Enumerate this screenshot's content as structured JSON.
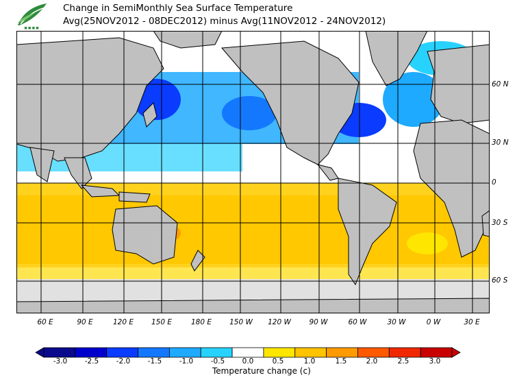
{
  "title": {
    "line1": "Change in SemiMonthly Sea Surface Temperature",
    "line2": "Avg(25NOV2012 - 08DEC2012) minus Avg(11NOV2012 - 24NOV2012)"
  },
  "lat_labels": [
    "60 N",
    "30 N",
    "0",
    "30 S",
    "60 S"
  ],
  "lon_labels": [
    "60 E",
    "90 E",
    "120 E",
    "150 E",
    "180 E",
    "150 W",
    "120 W",
    "90 W",
    "60 W",
    "30 W",
    "0 W",
    "30 E"
  ],
  "colorbar": {
    "title": "Temperature change  (c)",
    "ticks": [
      "-3.0",
      "-2.5",
      "-2.0",
      "-1.5",
      "-1.0",
      "-0.5",
      "0.0",
      "0.5",
      "1.0",
      "1.5",
      "2.0",
      "2.5",
      "3.0"
    ],
    "colors": [
      "#0a0a8c",
      "#0000cd",
      "#0a3cff",
      "#1478ff",
      "#1eaaff",
      "#28d2ff",
      "#ffffff",
      "#ffe600",
      "#ffc300",
      "#ff9b00",
      "#ff5a00",
      "#f02800",
      "#c80000"
    ]
  },
  "map": {
    "land_color": "#c0c0c0",
    "ice_color": "#e1e1e1",
    "regions": [
      {
        "region": "north-pacific",
        "change": "cooling"
      },
      {
        "region": "north-atlantic",
        "change": "cooling"
      },
      {
        "region": "southern-hemisphere",
        "change": "warming"
      }
    ]
  }
}
